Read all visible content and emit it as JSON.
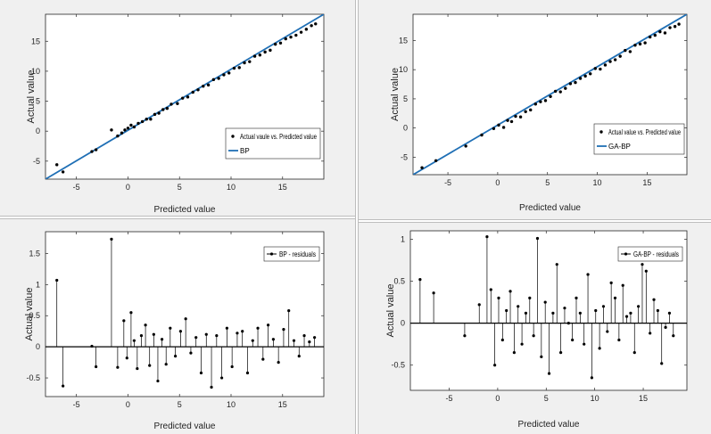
{
  "colors": {
    "background": "#f0f0f0",
    "axes": "#ffffff",
    "fit_line": "#1f6fb5",
    "points": "#000000"
  },
  "chart_data": [
    {
      "id": "tl",
      "type": "scatter",
      "title": "",
      "xlabel": "Predicted value",
      "ylabel": "Actual value",
      "xlim": [
        -8,
        19
      ],
      "ylim": [
        -8,
        19.5
      ],
      "xticks": [
        -5,
        0,
        5,
        10,
        15
      ],
      "yticks": [
        -5,
        0,
        5,
        10,
        15
      ],
      "legend": [
        "Actual vaule vs. Predicted value",
        "BP"
      ],
      "legend_position": "lower-right",
      "fit_line": [
        [
          -8,
          -8
        ],
        [
          19,
          19.5
        ]
      ],
      "x": [
        -6.9,
        -6.3,
        -3.5,
        -3.1,
        -1.6,
        -1.0,
        -0.6,
        -0.3,
        0.0,
        0.3,
        0.6,
        1.0,
        1.4,
        1.8,
        2.2,
        2.6,
        3.0,
        3.4,
        3.8,
        4.2,
        4.8,
        5.3,
        5.8,
        6.3,
        6.8,
        7.3,
        7.8,
        8.3,
        8.8,
        9.3,
        9.8,
        10.3,
        10.8,
        11.3,
        11.8,
        12.3,
        12.8,
        13.3,
        13.8,
        14.3,
        14.8,
        15.3,
        15.8,
        16.3,
        16.8,
        17.3,
        17.8,
        18.2
      ],
      "y": [
        -5.6,
        -6.8,
        -3.4,
        -3.1,
        0.2,
        -0.8,
        -0.3,
        0.2,
        0.5,
        1.0,
        0.7,
        1.3,
        1.6,
        2.0,
        2.0,
        2.8,
        3.0,
        3.6,
        3.8,
        4.5,
        4.6,
        5.5,
        5.7,
        6.5,
        6.9,
        7.5,
        7.7,
        8.6,
        8.8,
        9.4,
        9.7,
        10.5,
        10.6,
        11.4,
        11.6,
        12.5,
        12.7,
        13.2,
        13.5,
        14.5,
        14.7,
        15.4,
        15.7,
        16.0,
        16.5,
        17.0,
        17.6,
        17.9
      ]
    },
    {
      "id": "tr",
      "type": "scatter",
      "title": "",
      "xlabel": "Predicted value",
      "ylabel": "Actual value",
      "xlim": [
        -8.5,
        19
      ],
      "ylim": [
        -8,
        19.5
      ],
      "xticks": [
        -5,
        0,
        5,
        10,
        15
      ],
      "yticks": [
        -5,
        0,
        5,
        10,
        15
      ],
      "legend": [
        "Actual value vs. Predicted value",
        "GA-BP"
      ],
      "legend_position": "lower-right",
      "fit_line": [
        [
          -8.5,
          -8
        ],
        [
          19,
          19.5
        ]
      ],
      "x": [
        -7.6,
        -6.2,
        -3.2,
        -1.6,
        -0.4,
        0.1,
        0.6,
        1.0,
        1.4,
        1.8,
        2.3,
        2.8,
        3.3,
        3.8,
        4.3,
        4.8,
        5.3,
        5.8,
        6.3,
        6.8,
        7.3,
        7.8,
        8.3,
        8.8,
        9.3,
        9.8,
        10.3,
        10.8,
        11.3,
        11.8,
        12.3,
        12.8,
        13.3,
        13.8,
        14.3,
        14.8,
        15.3,
        15.8,
        16.3,
        16.8,
        17.3,
        17.8,
        18.2
      ],
      "y": [
        -6.8,
        -5.6,
        -3.1,
        -1.2,
        -0.1,
        0.5,
        0.1,
        1.3,
        1.1,
        2.0,
        1.9,
        2.8,
        3.1,
        4.1,
        4.5,
        4.7,
        5.4,
        6.3,
        6.2,
        6.8,
        7.6,
        7.8,
        8.5,
        8.9,
        9.3,
        10.2,
        10.1,
        10.8,
        11.4,
        11.7,
        12.3,
        13.3,
        13.1,
        14.2,
        14.4,
        14.6,
        15.6,
        15.9,
        16.5,
        16.3,
        17.2,
        17.4,
        17.8
      ]
    },
    {
      "id": "bl",
      "type": "stem",
      "title": "",
      "xlabel": "Predicted value",
      "ylabel": "Actual value",
      "xlim": [
        -8,
        19
      ],
      "ylim": [
        -0.8,
        1.85
      ],
      "xticks": [
        -5,
        0,
        5,
        10,
        15
      ],
      "yticks": [
        -0.5,
        0,
        0.5,
        1,
        1.5
      ],
      "ytick_labels": [
        "-0.5",
        "0",
        "0.5",
        "1",
        "1.5"
      ],
      "legend": [
        "BP - residuals"
      ],
      "legend_position": "top-right",
      "x": [
        -6.9,
        -6.3,
        -3.5,
        -3.1,
        -1.6,
        -1.0,
        -0.4,
        -0.1,
        0.3,
        0.6,
        0.9,
        1.3,
        1.7,
        2.1,
        2.5,
        2.9,
        3.3,
        3.7,
        4.1,
        4.6,
        5.1,
        5.6,
        6.1,
        6.6,
        7.1,
        7.6,
        8.1,
        8.6,
        9.1,
        9.6,
        10.1,
        10.6,
        11.1,
        11.6,
        12.1,
        12.6,
        13.1,
        13.6,
        14.1,
        14.6,
        15.1,
        15.6,
        16.1,
        16.6,
        17.1,
        17.6,
        18.1
      ],
      "values": [
        1.07,
        -0.63,
        0.01,
        -0.32,
        1.73,
        -0.33,
        0.42,
        -0.18,
        0.55,
        0.1,
        -0.35,
        0.18,
        0.35,
        -0.3,
        0.2,
        -0.55,
        0.12,
        -0.28,
        0.3,
        -0.15,
        0.25,
        0.45,
        -0.1,
        0.15,
        -0.42,
        0.2,
        -0.65,
        0.18,
        -0.5,
        0.3,
        -0.32,
        0.22,
        0.25,
        -0.42,
        0.1,
        0.3,
        -0.2,
        0.35,
        0.12,
        -0.25,
        0.28,
        0.58,
        0.1,
        -0.15,
        0.18,
        0.08,
        0.15
      ]
    },
    {
      "id": "br",
      "type": "stem",
      "title": "",
      "xlabel": "Predicted value",
      "ylabel": "Actual value",
      "xlim": [
        -9,
        19.5
      ],
      "ylim": [
        -0.8,
        1.1
      ],
      "xticks": [
        -5,
        0,
        5,
        10,
        15
      ],
      "yticks": [
        -0.5,
        0,
        0.5,
        1
      ],
      "ytick_labels": [
        "-0.5",
        "0",
        "0.5",
        "1"
      ],
      "legend": [
        "GA-BP - residuals"
      ],
      "legend_position": "top-right",
      "x": [
        -8.0,
        -6.6,
        -3.4,
        -1.9,
        -1.1,
        -0.7,
        -0.3,
        0.1,
        0.5,
        0.9,
        1.3,
        1.7,
        2.1,
        2.5,
        2.9,
        3.3,
        3.7,
        4.1,
        4.5,
        4.9,
        5.3,
        5.7,
        6.1,
        6.5,
        6.9,
        7.3,
        7.7,
        8.1,
        8.5,
        8.9,
        9.3,
        9.7,
        10.1,
        10.5,
        10.9,
        11.3,
        11.7,
        12.1,
        12.5,
        12.9,
        13.3,
        13.7,
        14.1,
        14.5,
        14.9,
        15.3,
        15.7,
        16.1,
        16.5,
        16.9,
        17.3,
        17.7,
        18.1
      ],
      "values": [
        0.52,
        0.36,
        -0.15,
        0.22,
        1.03,
        0.4,
        -0.5,
        0.3,
        -0.2,
        0.15,
        0.38,
        -0.35,
        0.2,
        -0.25,
        0.12,
        0.3,
        -0.15,
        1.01,
        -0.4,
        0.25,
        -0.6,
        0.12,
        0.7,
        -0.35,
        0.18,
        0.0,
        -0.2,
        0.3,
        0.12,
        -0.25,
        0.58,
        -0.65,
        0.15,
        -0.3,
        0.2,
        -0.1,
        0.48,
        0.3,
        -0.2,
        0.45,
        0.08,
        0.12,
        -0.35,
        0.2,
        0.7,
        0.62,
        -0.12,
        0.28,
        0.15,
        -0.48,
        -0.05,
        0.12,
        -0.15
      ]
    }
  ]
}
